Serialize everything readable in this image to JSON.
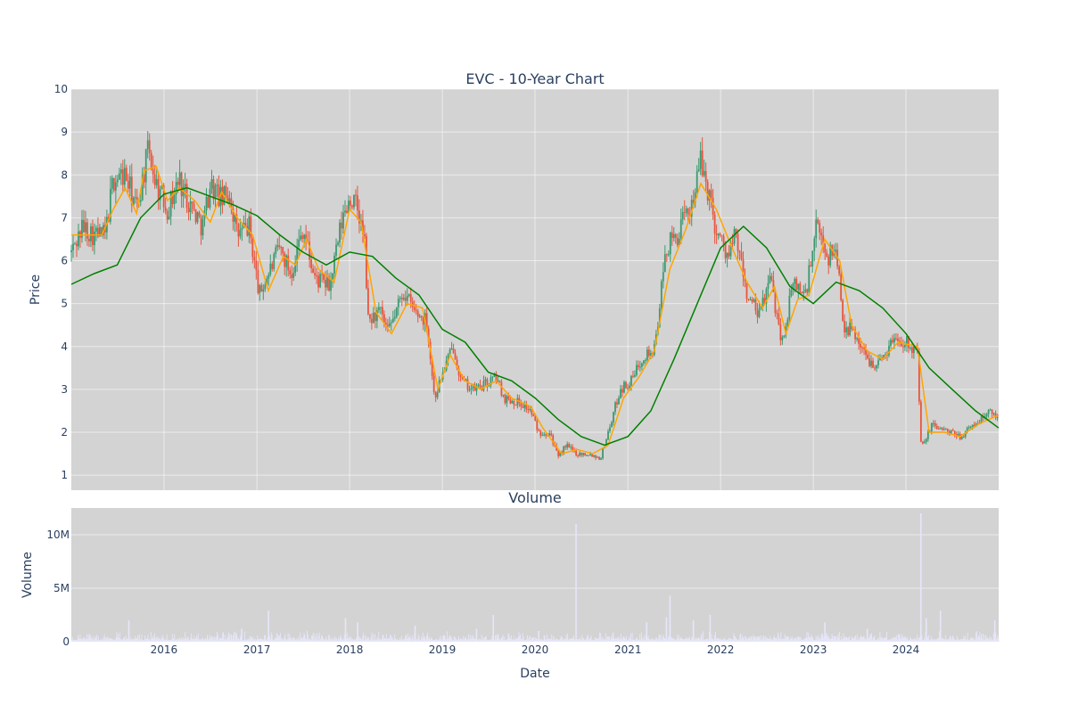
{
  "chart_data": [
    {
      "type": "candlestick",
      "title": "EVC - 10-Year Chart",
      "xlabel": "",
      "ylabel": "Price",
      "ylim": [
        0.65,
        10
      ],
      "yticks": [
        1,
        2,
        3,
        4,
        5,
        6,
        7,
        8,
        9,
        10
      ],
      "xlim": [
        "2015-01-01",
        "2024-12-31"
      ],
      "xticks": [
        "2016",
        "2017",
        "2018",
        "2019",
        "2020",
        "2021",
        "2022",
        "2023",
        "2024"
      ],
      "grid": true,
      "background": "#d3d3d3",
      "increasing_color": "#3d9970",
      "decreasing_color": "#e8553e",
      "price_path": [
        [
          "2015-01-01",
          6.2
        ],
        [
          "2015-02-15",
          6.8
        ],
        [
          "2015-04-01",
          6.6
        ],
        [
          "2015-05-15",
          6.6
        ],
        [
          "2015-06-15",
          7.9
        ],
        [
          "2015-08-01",
          8.0
        ],
        [
          "2015-09-15",
          7.2
        ],
        [
          "2015-11-01",
          8.6
        ],
        [
          "2015-12-01",
          7.8
        ],
        [
          "2016-01-15",
          7.2
        ],
        [
          "2016-03-01",
          7.9
        ],
        [
          "2016-04-15",
          7.3
        ],
        [
          "2016-06-01",
          6.8
        ],
        [
          "2016-07-01",
          7.8
        ],
        [
          "2016-08-15",
          7.4
        ],
        [
          "2016-09-15",
          7.6
        ],
        [
          "2016-10-15",
          6.6
        ],
        [
          "2016-12-01",
          6.8
        ],
        [
          "2017-01-10",
          5.2
        ],
        [
          "2017-02-15",
          5.7
        ],
        [
          "2017-04-01",
          6.3
        ],
        [
          "2017-05-15",
          5.7
        ],
        [
          "2017-07-01",
          6.8
        ],
        [
          "2017-08-15",
          5.6
        ],
        [
          "2017-10-15",
          5.4
        ],
        [
          "2017-12-01",
          6.9
        ],
        [
          "2018-01-01",
          7.5
        ],
        [
          "2018-02-01",
          7.2
        ],
        [
          "2018-03-01",
          6.4
        ],
        [
          "2018-03-15",
          4.6
        ],
        [
          "2018-05-01",
          4.8
        ],
        [
          "2018-06-01",
          4.3
        ],
        [
          "2018-08-01",
          5.3
        ],
        [
          "2018-09-15",
          4.8
        ],
        [
          "2018-11-01",
          4.6
        ],
        [
          "2018-12-01",
          2.8
        ],
        [
          "2019-01-15",
          3.6
        ],
        [
          "2019-02-15",
          4.0
        ],
        [
          "2019-03-15",
          3.2
        ],
        [
          "2019-05-01",
          3.0
        ],
        [
          "2019-06-15",
          3.1
        ],
        [
          "2019-08-01",
          3.3
        ],
        [
          "2019-09-01",
          2.8
        ],
        [
          "2019-11-01",
          2.7
        ],
        [
          "2019-12-15",
          2.5
        ],
        [
          "2020-01-15",
          2.0
        ],
        [
          "2020-03-01",
          2.0
        ],
        [
          "2020-04-01",
          1.4
        ],
        [
          "2020-05-01",
          1.7
        ],
        [
          "2020-06-15",
          1.5
        ],
        [
          "2020-08-01",
          1.5
        ],
        [
          "2020-09-15",
          1.4
        ],
        [
          "2020-10-15",
          2.0
        ],
        [
          "2020-12-01",
          3.0
        ],
        [
          "2021-01-15",
          3.2
        ],
        [
          "2021-03-01",
          3.8
        ],
        [
          "2021-04-15",
          3.9
        ],
        [
          "2021-06-01",
          6.3
        ],
        [
          "2021-07-15",
          6.6
        ],
        [
          "2021-09-01",
          7.2
        ],
        [
          "2021-10-15",
          8.3
        ],
        [
          "2021-11-15",
          7.6
        ],
        [
          "2021-12-15",
          6.7
        ],
        [
          "2022-02-01",
          6.1
        ],
        [
          "2022-03-01",
          6.6
        ],
        [
          "2022-04-15",
          5.2
        ],
        [
          "2022-06-01",
          4.7
        ],
        [
          "2022-07-15",
          5.6
        ],
        [
          "2022-09-01",
          4.1
        ],
        [
          "2022-10-15",
          5.5
        ],
        [
          "2022-12-01",
          5.2
        ],
        [
          "2023-01-15",
          6.8
        ],
        [
          "2023-03-01",
          6.1
        ],
        [
          "2023-04-01",
          6.3
        ],
        [
          "2023-05-01",
          4.5
        ],
        [
          "2023-06-15",
          4.3
        ],
        [
          "2023-08-01",
          3.7
        ],
        [
          "2023-09-15",
          3.6
        ],
        [
          "2023-11-15",
          4.2
        ],
        [
          "2024-01-15",
          4.1
        ],
        [
          "2024-02-15",
          3.8
        ],
        [
          "2024-03-01",
          1.6
        ],
        [
          "2024-04-15",
          2.2
        ],
        [
          "2024-06-15",
          2.0
        ],
        [
          "2024-08-01",
          1.9
        ],
        [
          "2024-10-01",
          2.2
        ],
        [
          "2024-12-01",
          2.5
        ],
        [
          "2024-12-31",
          2.3
        ]
      ],
      "series": [
        {
          "type": "line",
          "color": "#ffa500",
          "points": [
            [
              "2015-01-01",
              6.6
            ],
            [
              "2015-03-01",
              6.6
            ],
            [
              "2015-05-01",
              6.6
            ],
            [
              "2015-06-15",
              7.2
            ],
            [
              "2015-08-01",
              7.7
            ],
            [
              "2015-09-15",
              7.1
            ],
            [
              "2015-10-15",
              8.1
            ],
            [
              "2015-12-01",
              8.2
            ],
            [
              "2016-01-15",
              7.4
            ],
            [
              "2016-03-01",
              7.7
            ],
            [
              "2016-05-01",
              7.4
            ],
            [
              "2016-07-01",
              6.9
            ],
            [
              "2016-08-15",
              7.6
            ],
            [
              "2016-10-15",
              7.0
            ],
            [
              "2016-12-15",
              6.6
            ],
            [
              "2017-02-15",
              5.3
            ],
            [
              "2017-04-15",
              6.1
            ],
            [
              "2017-06-01",
              5.9
            ],
            [
              "2017-07-15",
              6.5
            ],
            [
              "2017-09-01",
              5.8
            ],
            [
              "2017-11-01",
              5.5
            ],
            [
              "2018-01-01",
              7.2
            ],
            [
              "2018-02-15",
              6.9
            ],
            [
              "2018-04-15",
              4.8
            ],
            [
              "2018-06-15",
              4.3
            ],
            [
              "2018-08-15",
              5.0
            ],
            [
              "2018-10-15",
              4.9
            ],
            [
              "2018-12-15",
              3.0
            ],
            [
              "2019-02-01",
              3.8
            ],
            [
              "2019-04-01",
              3.2
            ],
            [
              "2019-06-01",
              3.0
            ],
            [
              "2019-08-01",
              3.2
            ],
            [
              "2019-10-01",
              2.8
            ],
            [
              "2019-12-15",
              2.6
            ],
            [
              "2020-02-01",
              2.1
            ],
            [
              "2020-04-15",
              1.5
            ],
            [
              "2020-06-15",
              1.6
            ],
            [
              "2020-08-15",
              1.5
            ],
            [
              "2020-10-15",
              1.7
            ],
            [
              "2020-12-15",
              2.8
            ],
            [
              "2021-02-15",
              3.3
            ],
            [
              "2021-04-15",
              3.9
            ],
            [
              "2021-06-15",
              5.8
            ],
            [
              "2021-08-15",
              6.7
            ],
            [
              "2021-10-15",
              7.8
            ],
            [
              "2021-12-15",
              7.2
            ],
            [
              "2022-02-15",
              6.3
            ],
            [
              "2022-04-15",
              5.5
            ],
            [
              "2022-06-15",
              4.9
            ],
            [
              "2022-08-01",
              5.4
            ],
            [
              "2022-09-15",
              4.3
            ],
            [
              "2022-11-01",
              5.1
            ],
            [
              "2022-12-15",
              5.2
            ],
            [
              "2023-02-15",
              6.5
            ],
            [
              "2023-04-15",
              6.0
            ],
            [
              "2023-06-01",
              4.5
            ],
            [
              "2023-08-01",
              3.9
            ],
            [
              "2023-10-01",
              3.7
            ],
            [
              "2023-12-01",
              4.1
            ],
            [
              "2024-02-15",
              4.0
            ],
            [
              "2024-04-01",
              2.0
            ],
            [
              "2024-06-01",
              2.0
            ],
            [
              "2024-08-01",
              1.9
            ],
            [
              "2024-10-15",
              2.2
            ],
            [
              "2024-12-31",
              2.4
            ]
          ]
        },
        {
          "type": "line",
          "color": "#008000",
          "points": [
            [
              "2015-01-01",
              5.45
            ],
            [
              "2015-04-01",
              5.7
            ],
            [
              "2015-07-01",
              5.9
            ],
            [
              "2015-10-01",
              7.0
            ],
            [
              "2016-01-01",
              7.55
            ],
            [
              "2016-04-01",
              7.7
            ],
            [
              "2016-07-01",
              7.5
            ],
            [
              "2016-10-01",
              7.3
            ],
            [
              "2017-01-01",
              7.05
            ],
            [
              "2017-04-01",
              6.6
            ],
            [
              "2017-07-01",
              6.2
            ],
            [
              "2017-10-01",
              5.9
            ],
            [
              "2018-01-01",
              6.2
            ],
            [
              "2018-04-01",
              6.1
            ],
            [
              "2018-07-01",
              5.6
            ],
            [
              "2018-10-01",
              5.2
            ],
            [
              "2019-01-01",
              4.4
            ],
            [
              "2019-04-01",
              4.1
            ],
            [
              "2019-07-01",
              3.4
            ],
            [
              "2019-10-01",
              3.2
            ],
            [
              "2020-01-01",
              2.8
            ],
            [
              "2020-04-01",
              2.3
            ],
            [
              "2020-07-01",
              1.9
            ],
            [
              "2020-10-01",
              1.7
            ],
            [
              "2021-01-01",
              1.9
            ],
            [
              "2021-04-01",
              2.5
            ],
            [
              "2021-07-01",
              3.7
            ],
            [
              "2021-10-01",
              5.0
            ],
            [
              "2022-01-01",
              6.3
            ],
            [
              "2022-04-01",
              6.8
            ],
            [
              "2022-07-01",
              6.3
            ],
            [
              "2022-10-01",
              5.4
            ],
            [
              "2023-01-01",
              5.0
            ],
            [
              "2023-04-01",
              5.5
            ],
            [
              "2023-07-01",
              5.3
            ],
            [
              "2023-10-01",
              4.9
            ],
            [
              "2024-01-01",
              4.3
            ],
            [
              "2024-04-01",
              3.5
            ],
            [
              "2024-07-01",
              3.0
            ],
            [
              "2024-10-01",
              2.5
            ],
            [
              "2024-12-31",
              2.1
            ]
          ]
        }
      ]
    },
    {
      "type": "bar",
      "title": "Volume",
      "xlabel": "Date",
      "ylabel": "Volume",
      "ylim": [
        0,
        12500000
      ],
      "yticks": [
        0,
        5000000,
        10000000
      ],
      "ytick_labels": [
        "0",
        "5M",
        "10M"
      ],
      "xlim": [
        "2015-01-01",
        "2024-12-31"
      ],
      "xticks": [
        "2016",
        "2017",
        "2018",
        "2019",
        "2020",
        "2021",
        "2022",
        "2023",
        "2024"
      ],
      "grid": true,
      "background": "#d3d3d3",
      "bar_color": "#e6e6fa",
      "spikes": [
        [
          "2015-08-15",
          2000000
        ],
        [
          "2016-11-01",
          1200000
        ],
        [
          "2017-02-15",
          2900000
        ],
        [
          "2017-12-15",
          2200000
        ],
        [
          "2018-02-01",
          1800000
        ],
        [
          "2018-09-15",
          1500000
        ],
        [
          "2019-05-15",
          1200000
        ],
        [
          "2019-07-20",
          2500000
        ],
        [
          "2020-01-15",
          1000000
        ],
        [
          "2020-06-10",
          11000000
        ],
        [
          "2021-03-15",
          1800000
        ],
        [
          "2021-06-01",
          2300000
        ],
        [
          "2021-06-15",
          4300000
        ],
        [
          "2021-09-15",
          2000000
        ],
        [
          "2021-11-20",
          2500000
        ],
        [
          "2023-02-15",
          1800000
        ],
        [
          "2023-08-01",
          1200000
        ],
        [
          "2024-02-28",
          12000000
        ],
        [
          "2024-03-20",
          2200000
        ],
        [
          "2024-05-15",
          2900000
        ],
        [
          "2024-12-15",
          2000000
        ]
      ]
    }
  ]
}
